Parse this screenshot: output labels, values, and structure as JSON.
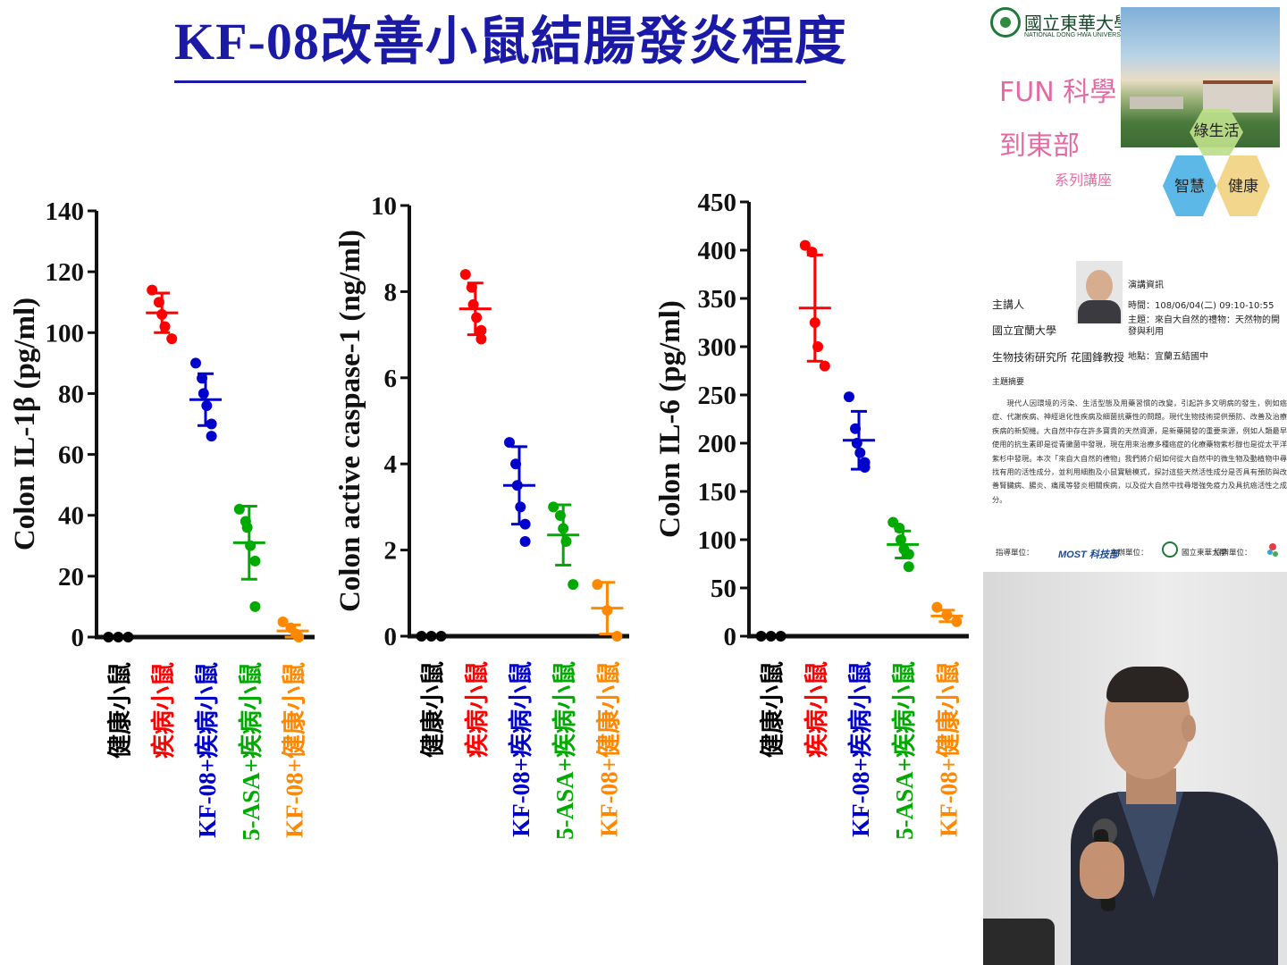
{
  "slide": {
    "title": "KF-08改善小鼠結腸發炎程度"
  },
  "groups": [
    {
      "label": "健康小鼠",
      "color": "#000000"
    },
    {
      "label": "疾病小鼠",
      "color": "#ff0000"
    },
    {
      "label": "KF-08+疾病小鼠",
      "color": "#0000cc"
    },
    {
      "label": "5-ASA+疾病小鼠",
      "color": "#00aa00"
    },
    {
      "label": "KF-08+健康小鼠",
      "color": "#ff8800"
    }
  ],
  "chart_data": [
    {
      "type": "scatter",
      "ylabel": "Colon IL-1β (pg/ml)",
      "ylim": [
        0,
        140
      ],
      "yticks": [
        0,
        20,
        40,
        60,
        80,
        100,
        120,
        140
      ],
      "categories": [
        "健康小鼠",
        "疾病小鼠",
        "KF-08+疾病小鼠",
        "5-ASA+疾病小鼠",
        "KF-08+健康小鼠"
      ],
      "series": [
        {
          "points": [
            0,
            0,
            0
          ],
          "mean": 0,
          "sd": 0
        },
        {
          "points": [
            114,
            110,
            106,
            102,
            98
          ],
          "mean": 106.5,
          "sd": 6.5
        },
        {
          "points": [
            90,
            85,
            80,
            76,
            70,
            66
          ],
          "mean": 78,
          "sd": 8.5
        },
        {
          "points": [
            42,
            38,
            36,
            30,
            25,
            10
          ],
          "mean": 31,
          "sd": 12
        },
        {
          "points": [
            5,
            3,
            1,
            0
          ],
          "mean": 2,
          "sd": 2
        }
      ]
    },
    {
      "type": "scatter",
      "ylabel": "Colon active caspase-1 (ng/ml)",
      "ylim": [
        0,
        10
      ],
      "yticks": [
        0,
        2,
        4,
        6,
        8,
        10
      ],
      "categories": [
        "健康小鼠",
        "疾病小鼠",
        "KF-08+疾病小鼠",
        "5-ASA+疾病小鼠",
        "KF-08+健康小鼠"
      ],
      "series": [
        {
          "points": [
            0,
            0,
            0
          ],
          "mean": 0,
          "sd": 0
        },
        {
          "points": [
            8.4,
            8.1,
            7.7,
            7.4,
            7.1,
            6.9
          ],
          "mean": 7.6,
          "sd": 0.6
        },
        {
          "points": [
            4.5,
            4.0,
            3.5,
            3.0,
            2.6,
            2.2
          ],
          "mean": 3.5,
          "sd": 0.9
        },
        {
          "points": [
            3.0,
            2.8,
            2.5,
            2.2,
            1.2
          ],
          "mean": 2.35,
          "sd": 0.7
        },
        {
          "points": [
            1.2,
            0.6,
            0.0
          ],
          "mean": 0.65,
          "sd": 0.6
        }
      ]
    },
    {
      "type": "scatter",
      "ylabel": "Colon IL-6 (pg/ml)",
      "ylim": [
        0,
        450
      ],
      "yticks": [
        0,
        50,
        100,
        150,
        200,
        250,
        300,
        350,
        400,
        450
      ],
      "categories": [
        "健康小鼠",
        "疾病小鼠",
        "KF-08+疾病小鼠",
        "5-ASA+疾病小鼠",
        "KF-08+健康小鼠"
      ],
      "series": [
        {
          "points": [
            0,
            0,
            0
          ],
          "mean": 0,
          "sd": 0
        },
        {
          "points": [
            405,
            398,
            325,
            300,
            280
          ],
          "mean": 340,
          "sd": 55
        },
        {
          "points": [
            248,
            215,
            200,
            190,
            180,
            175
          ],
          "mean": 203,
          "sd": 30
        },
        {
          "points": [
            118,
            112,
            100,
            90,
            85,
            72
          ],
          "mean": 95,
          "sd": 14
        },
        {
          "points": [
            30,
            22,
            15
          ],
          "mean": 21,
          "sd": 6
        }
      ]
    }
  ],
  "panel": {
    "uni_name": "國立東華大學",
    "uni_en": "NATIONAL DONG HWA UNIVERSITY",
    "fun_line1": "FUN 科學",
    "fun_line2": "到東部",
    "series_lecture": "系列講座",
    "hex_green": "綠生活",
    "hex_blue": "智慧",
    "hex_yellow": "健康",
    "speaker_label": "主講人",
    "speaker_org1": "國立宜蘭大學",
    "speaker_org2": "生物技術研究所  花國鋒教授",
    "info_head": "演講資訊",
    "info_time": "時間：108/06/04(二) 09:10-10:55",
    "info_topic": "主題：來自大自然的禮物：天然物的開發與利用",
    "info_place": "地點：宜蘭五結國中",
    "summary_head": "主題摘要",
    "summary_text": "現代人因環境的污染、生活型態及用藥習慣的改變，引起許多文明病的發生，例如癌症、代謝疾病、神經退化性疾病及細菌抗藥性的問題。現代生物技術提供預防、改善及治療疾病的新契機。大自然中存在許多寶貴的天然資源，是新藥開發的重要來源，例如人類最早使用的抗生素即是從青黴菌中發現，現在用來治療多種癌症的化療藥物紫杉醇也是從太平洋紫杉中發現。本次「來自大自然的禮物」我們將介紹如何從大自然中的微生物及動植物中尋找有用的活性成分，並利用細胞及小鼠實驗模式，探討這些天然活性成分是否具有預防與改善腎臟病、腸炎、痛風等發炎相關疾病，以及從大自然中找尋增強免疫力及具抗癌活性之成分。",
    "footer_guide": "指導單位：",
    "footer_most": "MOST 科技部",
    "footer_host": "主辦單位：",
    "footer_host_name": "國立東華大學",
    "footer_cohost": "協辦單位："
  }
}
